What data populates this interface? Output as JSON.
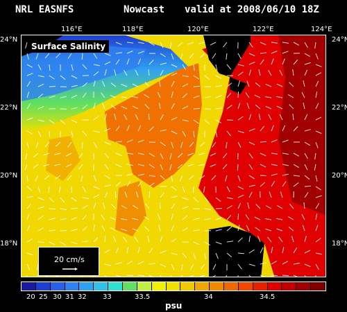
{
  "header": {
    "model": "NRL EASNFS",
    "product": "Nowcast",
    "valid": "valid at 2008/06/10 18Z"
  },
  "map": {
    "panel_label": "Surface Salinity",
    "lon_ticks": [
      "116°E",
      "118°E",
      "120°E",
      "122°E",
      "124°E"
    ],
    "lat_ticks_left": [
      "24°N",
      "22°N",
      "20°N",
      "18°N"
    ],
    "lat_ticks_right": [
      "24°N",
      "22°N",
      "20°N",
      "18°N"
    ],
    "land_color": "#000000",
    "vector_color": "#ffffff"
  },
  "scale": {
    "label": "20 cm/s"
  },
  "colorbar": {
    "tick_labels": [
      "20",
      "25",
      "30",
      "31",
      "32",
      "33",
      "33.5",
      "34",
      "34.5"
    ],
    "unit": "psu",
    "colors": [
      "#1a1aa0",
      "#1f3fd0",
      "#2a5fe8",
      "#2f80f0",
      "#30a0f0",
      "#30c0e8",
      "#30e0d0",
      "#60e060",
      "#c0f040",
      "#f0f000",
      "#f0e000",
      "#f0c800",
      "#f0a800",
      "#f08800",
      "#f06800",
      "#f04800",
      "#e82000",
      "#e00000",
      "#c00000",
      "#a00000",
      "#800000"
    ]
  }
}
